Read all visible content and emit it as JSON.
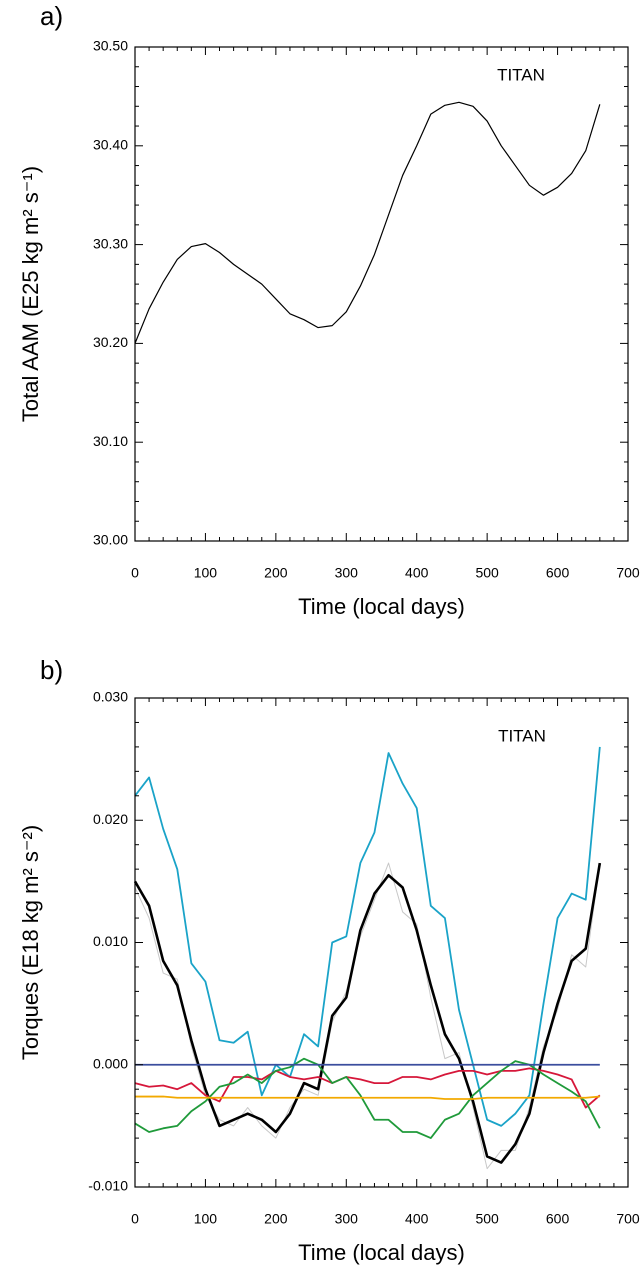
{
  "chart_data": [
    {
      "type": "line",
      "panel_label": "a)",
      "annotation": "TITAN",
      "xlabel": "Time (local days)",
      "ylabel": "Total AAM (E25 kg m² s⁻¹)",
      "xlim": [
        0,
        700
      ],
      "xticks": [
        0,
        100,
        200,
        300,
        400,
        500,
        600,
        700
      ],
      "ylim": [
        30.0,
        30.5
      ],
      "yticks": [
        {
          "value": 30.0,
          "label": "30.00"
        },
        {
          "value": 30.1,
          "label": "30.10"
        },
        {
          "value": 30.2,
          "label": "30.20"
        },
        {
          "value": 30.3,
          "label": "30.30"
        },
        {
          "value": 30.4,
          "label": "30.40"
        },
        {
          "value": 30.5,
          "label": "30.50"
        }
      ],
      "x": [
        0,
        20,
        40,
        60,
        80,
        100,
        120,
        140,
        160,
        180,
        200,
        220,
        240,
        260,
        280,
        300,
        320,
        340,
        360,
        380,
        400,
        420,
        440,
        460,
        480,
        500,
        520,
        540,
        560,
        580,
        600,
        620,
        640,
        660
      ],
      "series": [
        {
          "color": "#000000",
          "values": [
            30.2,
            30.235,
            30.262,
            30.285,
            30.298,
            30.301,
            30.292,
            30.28,
            30.27,
            30.26,
            30.245,
            30.23,
            30.224,
            30.216,
            30.218,
            30.232,
            30.258,
            30.29,
            30.33,
            30.37,
            30.4,
            30.432,
            30.441,
            30.444,
            30.44,
            30.425,
            30.4,
            30.38,
            30.36,
            30.35,
            30.358,
            30.372,
            30.395,
            30.442
          ]
        }
      ]
    },
    {
      "type": "line",
      "panel_label": "b)",
      "annotation": "TITAN",
      "xlabel": "Time (local days)",
      "ylabel": "Torques (E18 kg m² s⁻²)",
      "xlim": [
        0,
        700
      ],
      "xticks": [
        0,
        100,
        200,
        300,
        400,
        500,
        600,
        700
      ],
      "ylim": [
        -0.01,
        0.03
      ],
      "yticks": [
        {
          "value": -0.01,
          "label": "-0.010"
        },
        {
          "value": 0.0,
          "label": "0.000"
        },
        {
          "value": 0.01,
          "label": "0.010"
        },
        {
          "value": 0.02,
          "label": "0.020"
        },
        {
          "value": 0.03,
          "label": "0.030"
        }
      ],
      "x": [
        0,
        20,
        40,
        60,
        80,
        100,
        120,
        140,
        160,
        180,
        200,
        220,
        240,
        260,
        280,
        300,
        320,
        340,
        360,
        380,
        400,
        420,
        440,
        460,
        480,
        500,
        520,
        540,
        560,
        580,
        600,
        620,
        640,
        660
      ],
      "series": [
        {
          "color": "#c8c8c8",
          "values": [
            0.0145,
            0.012,
            0.0075,
            0.007,
            0.0015,
            -0.0025,
            -0.0045,
            -0.005,
            -0.0035,
            -0.005,
            -0.006,
            -0.0035,
            -0.002,
            -0.0025,
            0.0035,
            0.006,
            0.0105,
            0.0135,
            0.0165,
            0.0125,
            0.0115,
            0.0055,
            0.0005,
            0.001,
            -0.0035,
            -0.0085,
            -0.007,
            -0.007,
            -0.0035,
            0.0015,
            0.0045,
            0.009,
            0.008,
            0.0165
          ]
        },
        {
          "color": "#1aa3c8",
          "values": [
            0.022,
            0.0235,
            0.0193,
            0.016,
            0.0083,
            0.0068,
            0.002,
            0.0018,
            0.0027,
            -0.0025,
            0.0,
            -0.001,
            0.0025,
            0.0015,
            0.01,
            0.0105,
            0.0165,
            0.019,
            0.0255,
            0.023,
            0.021,
            0.013,
            0.012,
            0.0045,
            0.0,
            -0.0045,
            -0.005,
            -0.004,
            -0.0025,
            0.005,
            0.012,
            0.014,
            0.0135,
            0.026
          ]
        },
        {
          "color": "#000000",
          "values": [
            0.015,
            0.013,
            0.0085,
            0.0065,
            0.002,
            -0.002,
            -0.005,
            -0.0045,
            -0.004,
            -0.0045,
            -0.0055,
            -0.004,
            -0.0015,
            -0.002,
            0.004,
            0.0055,
            0.011,
            0.014,
            0.0155,
            0.0145,
            0.011,
            0.0065,
            0.0025,
            0.0005,
            -0.003,
            -0.0075,
            -0.008,
            -0.0065,
            -0.004,
            0.001,
            0.005,
            0.0085,
            0.0095,
            0.0165
          ]
        },
        {
          "color": "#d6173a",
          "values": [
            -0.0015,
            -0.0018,
            -0.0017,
            -0.002,
            -0.0015,
            -0.0025,
            -0.003,
            -0.001,
            -0.001,
            -0.0012,
            -0.0005,
            -0.001,
            -0.0012,
            -0.001,
            -0.0015,
            -0.001,
            -0.0012,
            -0.0015,
            -0.0015,
            -0.001,
            -0.001,
            -0.0012,
            -0.0008,
            -0.0005,
            -0.0005,
            -0.0008,
            -0.0005,
            -0.0005,
            -0.0003,
            -0.0005,
            -0.0008,
            -0.0012,
            -0.0035,
            -0.0025
          ]
        },
        {
          "color": "#1f9a3a",
          "values": [
            -0.0048,
            -0.0055,
            -0.0052,
            -0.005,
            -0.0038,
            -0.003,
            -0.0018,
            -0.0015,
            -0.0008,
            -0.0015,
            -0.0005,
            -0.0002,
            0.0005,
            0.0,
            -0.0015,
            -0.001,
            -0.0025,
            -0.0045,
            -0.0045,
            -0.0055,
            -0.0055,
            -0.006,
            -0.0045,
            -0.004,
            -0.0025,
            -0.0015,
            -0.0005,
            0.0003,
            0.0,
            -0.0008,
            -0.0015,
            -0.0022,
            -0.003,
            -0.0052
          ]
        },
        {
          "color": "#f2a900",
          "values": [
            -0.0026,
            -0.0026,
            -0.0026,
            -0.0027,
            -0.0027,
            -0.0027,
            -0.0027,
            -0.0027,
            -0.0027,
            -0.0027,
            -0.0027,
            -0.0027,
            -0.0027,
            -0.0027,
            -0.0027,
            -0.0027,
            -0.0027,
            -0.0027,
            -0.0027,
            -0.0027,
            -0.0027,
            -0.0027,
            -0.0028,
            -0.0028,
            -0.0028,
            -0.0027,
            -0.0027,
            -0.0027,
            -0.0027,
            -0.0027,
            -0.0027,
            -0.0027,
            -0.0027,
            -0.0026
          ]
        },
        {
          "color": "#3a4e9e",
          "values": [
            0,
            0,
            0,
            0,
            0,
            0,
            0,
            0,
            0,
            0,
            0,
            0,
            0,
            0,
            0,
            0,
            0,
            0,
            0,
            0,
            0,
            0,
            0,
            0,
            0,
            0,
            0,
            0,
            0,
            0,
            0,
            0,
            0,
            0
          ]
        }
      ]
    }
  ]
}
